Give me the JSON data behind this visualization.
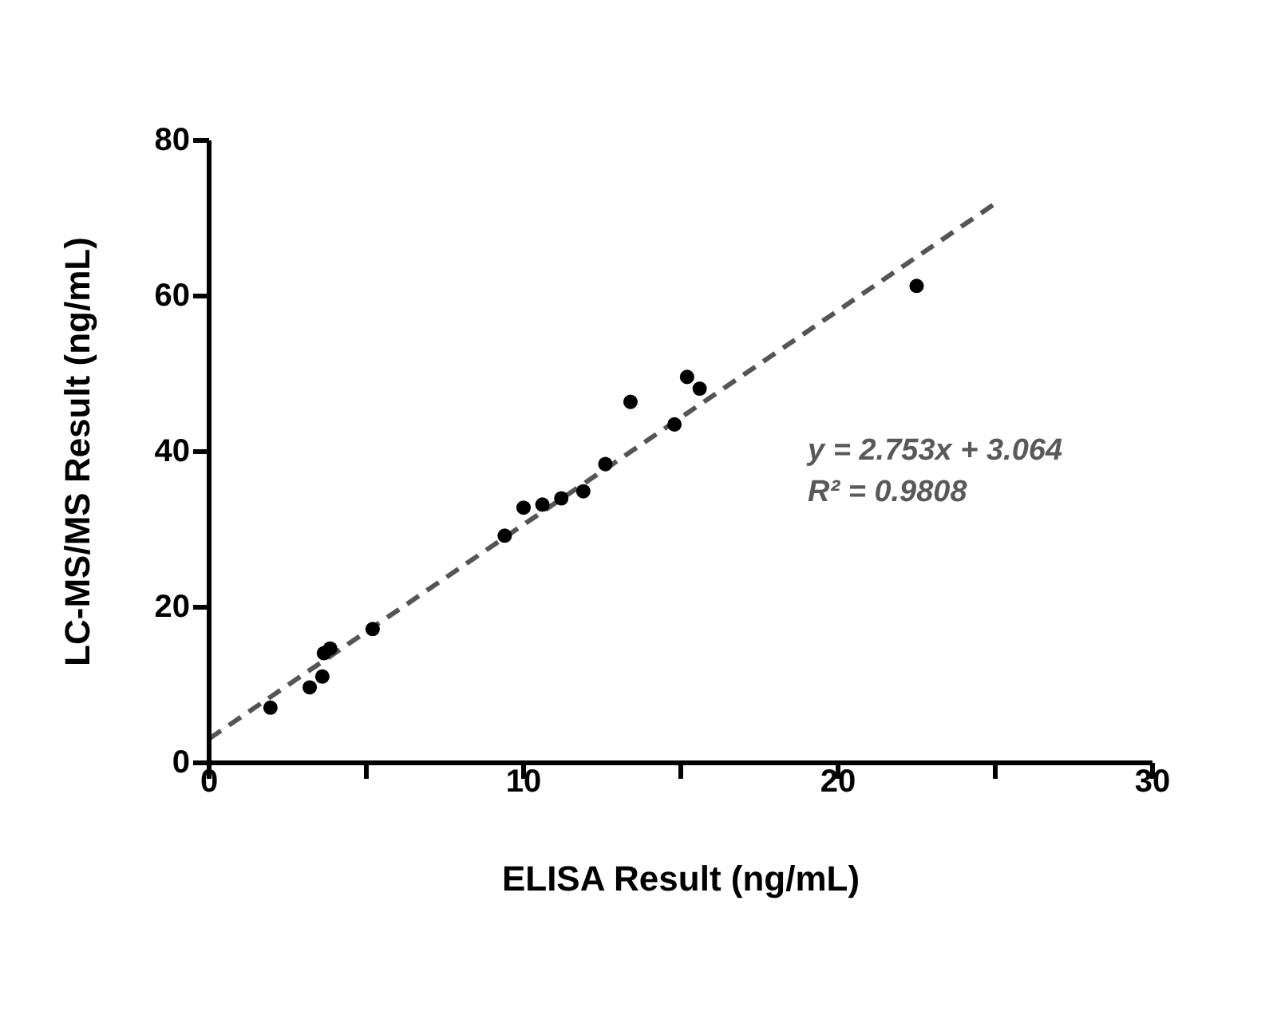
{
  "chart_data": {
    "type": "scatter",
    "xlabel": "ELISA Result (ng/mL)",
    "ylabel": "LC-MS/MS Result (ng/mL)",
    "xlim": [
      0,
      30
    ],
    "xticks": [
      0,
      {
        "value": 5,
        "label": null
      },
      10,
      {
        "value": 15,
        "label": null
      },
      20,
      {
        "value": 25,
        "label": null
      },
      30
    ],
    "ylim": [
      0,
      80
    ],
    "yticks": [
      0,
      20,
      40,
      60,
      80
    ],
    "grid": false,
    "marker": "circle",
    "annotations": [
      "y = 2.753x + 3.064",
      "R² = 0.9808"
    ],
    "series": [
      {
        "color": "#000000",
        "x": [
          1.95,
          3.2,
          3.6,
          3.65,
          3.85,
          5.2,
          9.4,
          10.0,
          10.6,
          11.2,
          11.9,
          12.6,
          13.4,
          14.8,
          15.2,
          15.6,
          22.5
        ],
        "values": [
          7.1,
          9.7,
          11.1,
          14.1,
          14.7,
          17.2,
          29.2,
          32.8,
          33.2,
          34.0,
          34.9,
          38.4,
          46.4,
          43.5,
          49.6,
          48.1,
          61.3
        ]
      },
      {
        "type": "line",
        "color": "#555555",
        "line_style": "dashed",
        "marker": "none",
        "x": [
          0,
          25
        ],
        "values": [
          3.1,
          71.9
        ]
      }
    ]
  }
}
